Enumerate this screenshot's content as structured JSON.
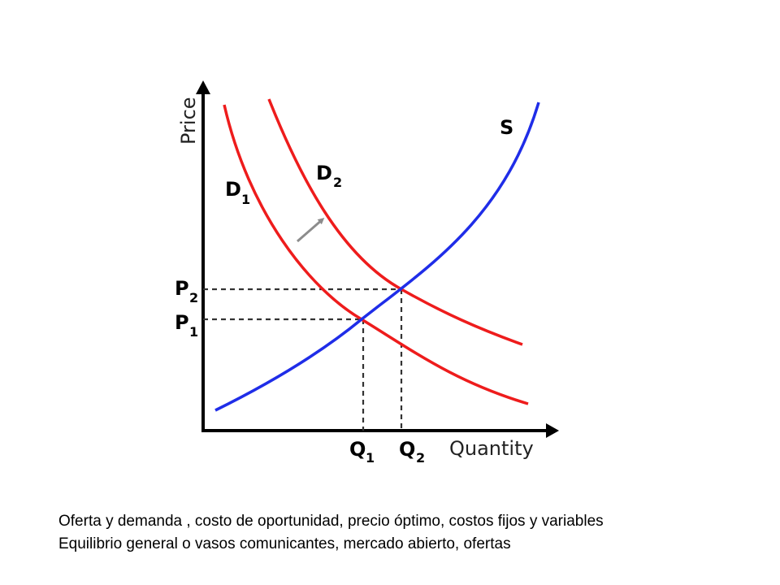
{
  "diagram": {
    "y_axis_label": "Price",
    "x_axis_label": "Quantity",
    "supply_label": "S",
    "demand1_label": "D",
    "demand1_sub": "1",
    "demand2_label": "D",
    "demand2_sub": "2",
    "p1_label": "P",
    "p1_sub": "1",
    "p2_label": "P",
    "p2_sub": "2",
    "q1_label": "Q",
    "q1_sub": "1",
    "q2_label": "Q",
    "q2_sub": "2",
    "colors": {
      "supply": "#1f2de8",
      "demand": "#ee1c1c",
      "axes": "#000000",
      "guides": "#333333",
      "shift_arrow": "#8c8c8c"
    }
  },
  "caption": {
    "line1": "Oferta y demanda , costo de oportunidad,  precio óptimo, costos fijos y variables",
    "line2": "Equilibrio general o vasos comunicantes, mercado abierto, ofertas"
  }
}
